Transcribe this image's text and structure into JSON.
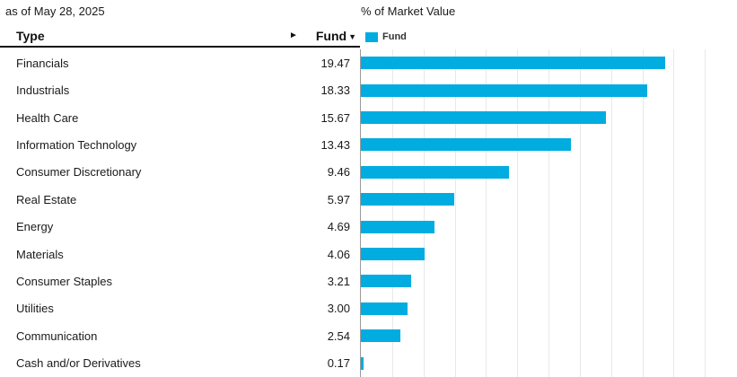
{
  "meta": {
    "as_of": "as of May 28, 2025"
  },
  "chart": {
    "title": "% of Market Value",
    "legend": {
      "label": "Fund",
      "color": "#00ACE0"
    }
  },
  "table": {
    "columns": {
      "type": "Type",
      "fund": "Fund"
    },
    "sort_indicator": "▼",
    "scroll_arrow": "►",
    "rows": [
      {
        "type": "Financials",
        "fund": "19.47"
      },
      {
        "type": "Industrials",
        "fund": "18.33"
      },
      {
        "type": "Health Care",
        "fund": "15.67"
      },
      {
        "type": "Information Technology",
        "fund": "13.43"
      },
      {
        "type": "Consumer Discretionary",
        "fund": "9.46"
      },
      {
        "type": "Real Estate",
        "fund": "5.97"
      },
      {
        "type": "Energy",
        "fund": "4.69"
      },
      {
        "type": "Materials",
        "fund": "4.06"
      },
      {
        "type": "Consumer Staples",
        "fund": "3.21"
      },
      {
        "type": "Utilities",
        "fund": "3.00"
      },
      {
        "type": "Communication",
        "fund": "2.54"
      },
      {
        "type": "Cash and/or Derivatives",
        "fund": "0.17"
      }
    ]
  },
  "chart_data": {
    "type": "bar",
    "orientation": "horizontal",
    "title": "% of Market Value",
    "categories": [
      "Financials",
      "Industrials",
      "Health Care",
      "Information Technology",
      "Consumer Discretionary",
      "Real Estate",
      "Energy",
      "Materials",
      "Consumer Staples",
      "Utilities",
      "Communication",
      "Cash and/or Derivatives"
    ],
    "series": [
      {
        "name": "Fund",
        "values": [
          19.47,
          18.33,
          15.67,
          13.43,
          9.46,
          5.97,
          4.69,
          4.06,
          3.21,
          3.0,
          2.54,
          0.17
        ]
      }
    ],
    "xlim": [
      0,
      24
    ],
    "gridline_interval": 2,
    "grid": true,
    "legend_position": "top",
    "bar_color": "#00ACE0"
  },
  "colors": {
    "bar": "#00ACE0",
    "axis_line": "#9b9b9b",
    "gridline": "#e8e8e8",
    "header_border": "#111111",
    "text": "#1a1a1a"
  }
}
